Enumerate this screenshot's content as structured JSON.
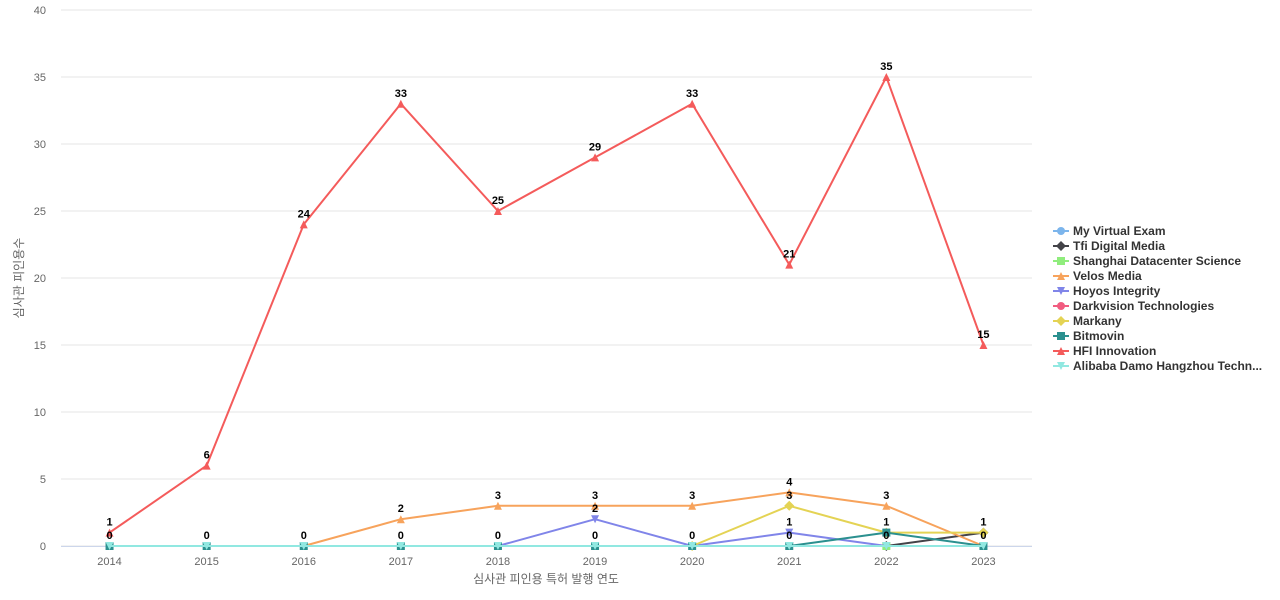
{
  "chart_data": {
    "type": "line",
    "xlabel": "심사관 피인용 특허 발행 연도",
    "ylabel": "심사관 피인용수",
    "categories": [
      "2014",
      "2015",
      "2016",
      "2017",
      "2018",
      "2019",
      "2020",
      "2021",
      "2022",
      "2023"
    ],
    "ylim": [
      0,
      40
    ],
    "yticks": [
      0,
      5,
      10,
      15,
      20,
      25,
      30,
      35,
      40
    ],
    "grid": true,
    "legend_position": "right",
    "series": [
      {
        "name": "My Virtual Exam",
        "color": "#7cb5ec",
        "marker": "circle",
        "values": [
          null,
          null,
          null,
          null,
          null,
          null,
          null,
          null,
          0,
          0
        ],
        "labels": [
          null,
          null,
          null,
          null,
          null,
          null,
          null,
          null,
          null,
          null
        ]
      },
      {
        "name": "Tfi Digital Media",
        "color": "#434348",
        "marker": "diamond",
        "values": [
          null,
          null,
          null,
          null,
          null,
          null,
          null,
          null,
          0,
          1
        ],
        "labels": [
          null,
          null,
          null,
          null,
          null,
          null,
          null,
          null,
          null,
          null
        ]
      },
      {
        "name": "Shanghai Datacenter Science",
        "color": "#90ed7d",
        "marker": "square",
        "values": [
          null,
          null,
          null,
          null,
          null,
          null,
          null,
          null,
          0,
          null
        ],
        "labels": [
          null,
          null,
          null,
          null,
          null,
          null,
          null,
          null,
          null,
          null
        ]
      },
      {
        "name": "Velos Media",
        "color": "#f7a35c",
        "marker": "triangle",
        "values": [
          null,
          null,
          0,
          2,
          3,
          3,
          3,
          4,
          3,
          0
        ],
        "labels": [
          null,
          null,
          null,
          2,
          3,
          3,
          3,
          4,
          3,
          null
        ]
      },
      {
        "name": "Hoyos Integrity",
        "color": "#8085e9",
        "marker": "triangle-down",
        "values": [
          null,
          null,
          null,
          null,
          0,
          2,
          0,
          1,
          0,
          null
        ],
        "labels": [
          null,
          null,
          null,
          null,
          null,
          2,
          null,
          1,
          null,
          null
        ]
      },
      {
        "name": "Darkvision Technologies",
        "color": "#f15c80",
        "marker": "circle",
        "values": [
          null,
          null,
          null,
          null,
          null,
          null,
          null,
          null,
          null,
          null
        ],
        "labels": [
          null,
          null,
          null,
          null,
          null,
          null,
          null,
          null,
          null,
          null
        ]
      },
      {
        "name": "Markany",
        "color": "#e4d354",
        "marker": "diamond",
        "values": [
          null,
          null,
          null,
          null,
          null,
          null,
          0,
          3,
          1,
          1
        ],
        "labels": [
          null,
          null,
          null,
          null,
          null,
          null,
          null,
          3,
          null,
          1
        ]
      },
      {
        "name": "Bitmovin",
        "color": "#2b908f",
        "marker": "square",
        "values": [
          0,
          0,
          0,
          0,
          0,
          0,
          0,
          0,
          1,
          0
        ],
        "labels": [
          0,
          0,
          0,
          0,
          0,
          0,
          0,
          0,
          1,
          0
        ]
      },
      {
        "name": "HFI Innovation",
        "color": "#f45b5b",
        "marker": "triangle",
        "values": [
          1,
          6,
          24,
          33,
          25,
          29,
          33,
          21,
          35,
          15
        ],
        "labels": [
          1,
          6,
          24,
          33,
          25,
          29,
          33,
          21,
          35,
          15
        ]
      },
      {
        "name": "Alibaba Damo Hangzhou Techn...",
        "color": "#91e8e1",
        "marker": "triangle-down",
        "values": [
          0,
          0,
          0,
          0,
          0,
          0,
          0,
          0,
          0,
          0
        ],
        "labels": [
          null,
          null,
          null,
          null,
          null,
          null,
          null,
          null,
          0,
          null
        ]
      }
    ]
  }
}
